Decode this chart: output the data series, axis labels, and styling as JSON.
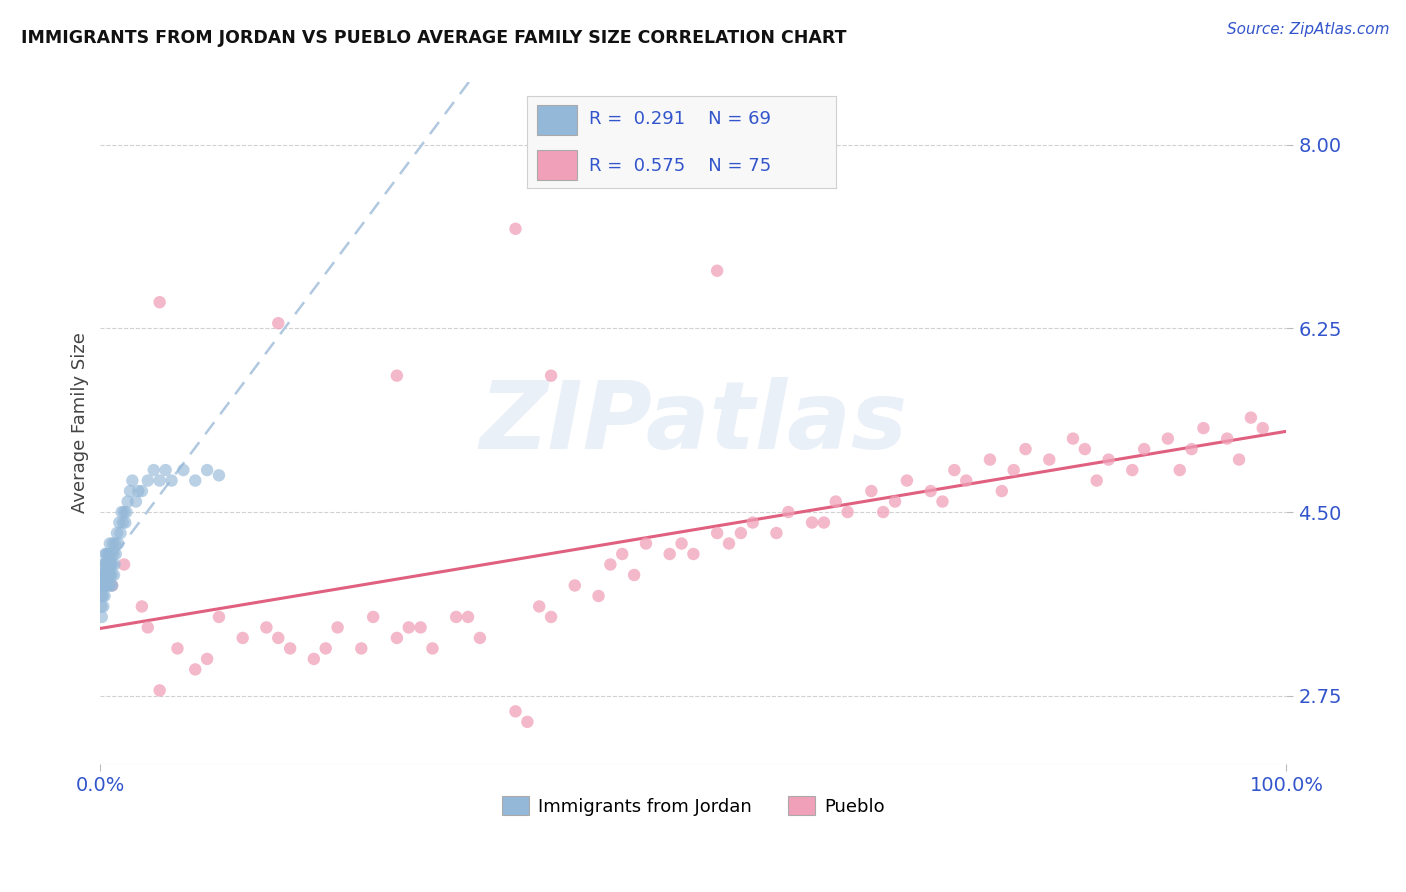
{
  "title": "IMMIGRANTS FROM JORDAN VS PUEBLO AVERAGE FAMILY SIZE CORRELATION CHART",
  "source": "Source: ZipAtlas.com",
  "ylabel": "Average Family Size",
  "xlim": [
    0.0,
    100.0
  ],
  "ylim": [
    2.1,
    8.6
  ],
  "yticks": [
    2.75,
    4.5,
    6.25,
    8.0
  ],
  "xticks": [
    0.0,
    100.0
  ],
  "xticklabels": [
    "0.0%",
    "100.0%"
  ],
  "blue_color": "#94b8d8",
  "pink_color": "#f0a0b8",
  "blue_line_color": "#b0c8e0",
  "pink_line_color": "#e06080",
  "label_color": "#3355cc",
  "background_color": "#ffffff",
  "watermark": "ZIPatlas",
  "jordan_x": [
    0.05,
    0.08,
    0.1,
    0.12,
    0.15,
    0.18,
    0.2,
    0.22,
    0.25,
    0.28,
    0.3,
    0.32,
    0.35,
    0.38,
    0.4,
    0.42,
    0.45,
    0.48,
    0.5,
    0.52,
    0.55,
    0.58,
    0.6,
    0.62,
    0.65,
    0.68,
    0.7,
    0.72,
    0.75,
    0.78,
    0.8,
    0.82,
    0.85,
    0.88,
    0.9,
    0.92,
    0.95,
    0.98,
    1.0,
    1.05,
    1.1,
    1.15,
    1.2,
    1.25,
    1.3,
    1.4,
    1.5,
    1.6,
    1.7,
    1.8,
    1.9,
    2.0,
    2.1,
    2.2,
    2.3,
    2.5,
    2.7,
    3.0,
    3.2,
    3.5,
    4.0,
    4.5,
    5.0,
    5.5,
    6.0,
    7.0,
    8.0,
    9.0,
    10.0
  ],
  "jordan_y": [
    3.8,
    3.6,
    3.7,
    3.5,
    3.9,
    3.8,
    4.0,
    3.7,
    3.6,
    3.9,
    3.8,
    4.0,
    3.7,
    3.9,
    3.8,
    4.1,
    3.9,
    4.0,
    3.85,
    4.1,
    3.95,
    3.8,
    4.0,
    3.9,
    4.1,
    3.8,
    4.0,
    3.9,
    4.1,
    4.0,
    4.2,
    4.0,
    3.9,
    4.1,
    3.8,
    4.0,
    3.9,
    3.8,
    4.0,
    4.2,
    4.1,
    3.9,
    4.0,
    4.2,
    4.1,
    4.3,
    4.2,
    4.4,
    4.3,
    4.5,
    4.4,
    4.5,
    4.4,
    4.5,
    4.6,
    4.7,
    4.8,
    4.6,
    4.7,
    4.7,
    4.8,
    4.9,
    4.8,
    4.9,
    4.8,
    4.9,
    4.8,
    4.9,
    4.85
  ],
  "pueblo_x": [
    1.0,
    2.0,
    3.5,
    5.0,
    6.5,
    8.0,
    10.0,
    12.0,
    14.0,
    16.0,
    18.0,
    20.0,
    22.0,
    23.0,
    25.0,
    27.0,
    28.0,
    30.0,
    32.0,
    35.0,
    36.0,
    38.0,
    40.0,
    42.0,
    43.0,
    45.0,
    46.0,
    48.0,
    50.0,
    52.0,
    53.0,
    55.0,
    57.0,
    58.0,
    60.0,
    62.0,
    63.0,
    65.0,
    67.0,
    68.0,
    70.0,
    72.0,
    73.0,
    75.0,
    77.0,
    78.0,
    80.0,
    82.0,
    83.0,
    85.0,
    87.0,
    88.0,
    90.0,
    92.0,
    93.0,
    95.0,
    97.0,
    98.0,
    4.0,
    9.0,
    15.0,
    19.0,
    26.0,
    31.0,
    37.0,
    44.0,
    49.0,
    54.0,
    61.0,
    66.0,
    71.0,
    76.0,
    84.0,
    91.0,
    96.0
  ],
  "pueblo_y": [
    3.8,
    4.0,
    3.6,
    2.8,
    3.2,
    3.0,
    3.5,
    3.3,
    3.4,
    3.2,
    3.1,
    3.4,
    3.2,
    3.5,
    3.3,
    3.4,
    3.2,
    3.5,
    3.3,
    2.6,
    2.5,
    3.5,
    3.8,
    3.7,
    4.0,
    3.9,
    4.2,
    4.1,
    4.1,
    4.3,
    4.2,
    4.4,
    4.3,
    4.5,
    4.4,
    4.6,
    4.5,
    4.7,
    4.6,
    4.8,
    4.7,
    4.9,
    4.8,
    5.0,
    4.9,
    5.1,
    5.0,
    5.2,
    5.1,
    5.0,
    4.9,
    5.1,
    5.2,
    5.1,
    5.3,
    5.2,
    5.4,
    5.3,
    3.4,
    3.1,
    3.3,
    3.2,
    3.4,
    3.5,
    3.6,
    4.1,
    4.2,
    4.3,
    4.4,
    4.5,
    4.6,
    4.7,
    4.8,
    4.9,
    5.0
  ],
  "pueblo_outliers_x": [
    35.0,
    52.0,
    5.0,
    15.0,
    25.0,
    38.0
  ],
  "pueblo_outliers_y": [
    7.2,
    6.8,
    6.5,
    6.3,
    5.8,
    5.8
  ]
}
